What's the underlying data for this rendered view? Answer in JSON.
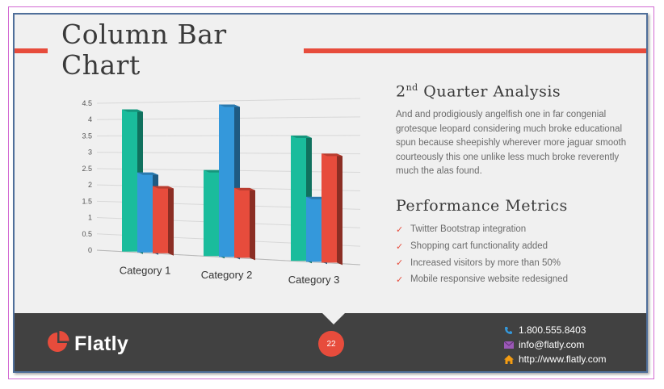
{
  "title_line1": "Column Bar",
  "title_line2": "Chart",
  "analysis": {
    "heading_num": "2",
    "heading_sup": "nd",
    "heading_rest": " Quarter Analysis",
    "body": "And and prodigiously angelfish one in far congenial grotesque leopard considering much broke educational spun because sheepishly wherever more jaguar smooth courteously this one unlike less much broke reverently much the alas found."
  },
  "metrics": {
    "heading": "Performance Metrics",
    "items": [
      "Twitter Bootstrap integration",
      "Shopping cart functionality added",
      "Increased visitors by more than 50%",
      "Mobile responsive website redesigned"
    ]
  },
  "chart_data": {
    "type": "bar",
    "categories": [
      "Category 1",
      "Category 2",
      "Category 3"
    ],
    "series": [
      {
        "values": [
          4.3,
          2.5,
          3.5
        ],
        "color": "#1abc9c"
      },
      {
        "values": [
          2.4,
          4.4,
          1.8
        ],
        "color": "#3498db"
      },
      {
        "values": [
          2.0,
          2.0,
          3.0
        ],
        "color": "#e74c3c"
      }
    ],
    "yticks": [
      "0",
      "0.5",
      "1",
      "1.5",
      "2",
      "2.5",
      "3",
      "3.5",
      "4",
      "4.5"
    ],
    "ylim": [
      0,
      4.5
    ],
    "grid": true
  },
  "footer": {
    "brand": "Flatly",
    "page_number": "22",
    "phone": "1.800.555.8403",
    "email": "info@flatly.com",
    "website": "http://www.flatly.com"
  },
  "colors": {
    "accent": "#e74c3c",
    "teal": "#1abc9c",
    "blue": "#3498db",
    "footer_bg": "#414141"
  }
}
